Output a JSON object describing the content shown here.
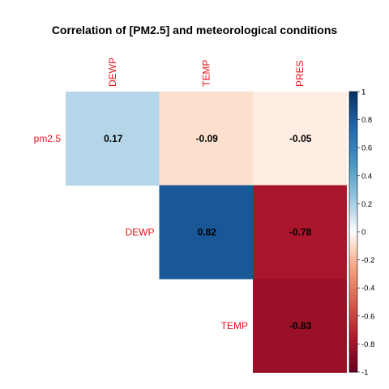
{
  "chart_data": {
    "type": "heatmap",
    "title": "Correlation of [PM2.5] and meteorological conditions",
    "columns": [
      "DEWP",
      "TEMP",
      "PRES"
    ],
    "rows": [
      "pm2.5",
      "DEWP",
      "TEMP"
    ],
    "values": [
      [
        0.17,
        -0.09,
        -0.05
      ],
      [
        null,
        0.82,
        -0.78
      ],
      [
        null,
        null,
        -0.83
      ]
    ],
    "labels": [
      [
        "0.17",
        "-0.09",
        "-0.05"
      ],
      [
        null,
        "0.82",
        "-0.78"
      ],
      [
        null,
        null,
        "-0.83"
      ]
    ],
    "colorbar": {
      "range": [
        -1,
        1
      ],
      "ticks": [
        "1",
        "0.8",
        "0.6",
        "0.4",
        "0.2",
        "0",
        "-0.2",
        "-0.4",
        "-0.6",
        "-0.8",
        "-1"
      ],
      "low_color": "#67001f",
      "mid_color": "#ffffff",
      "high_color": "#053061"
    },
    "label_color": "#e8121a"
  }
}
